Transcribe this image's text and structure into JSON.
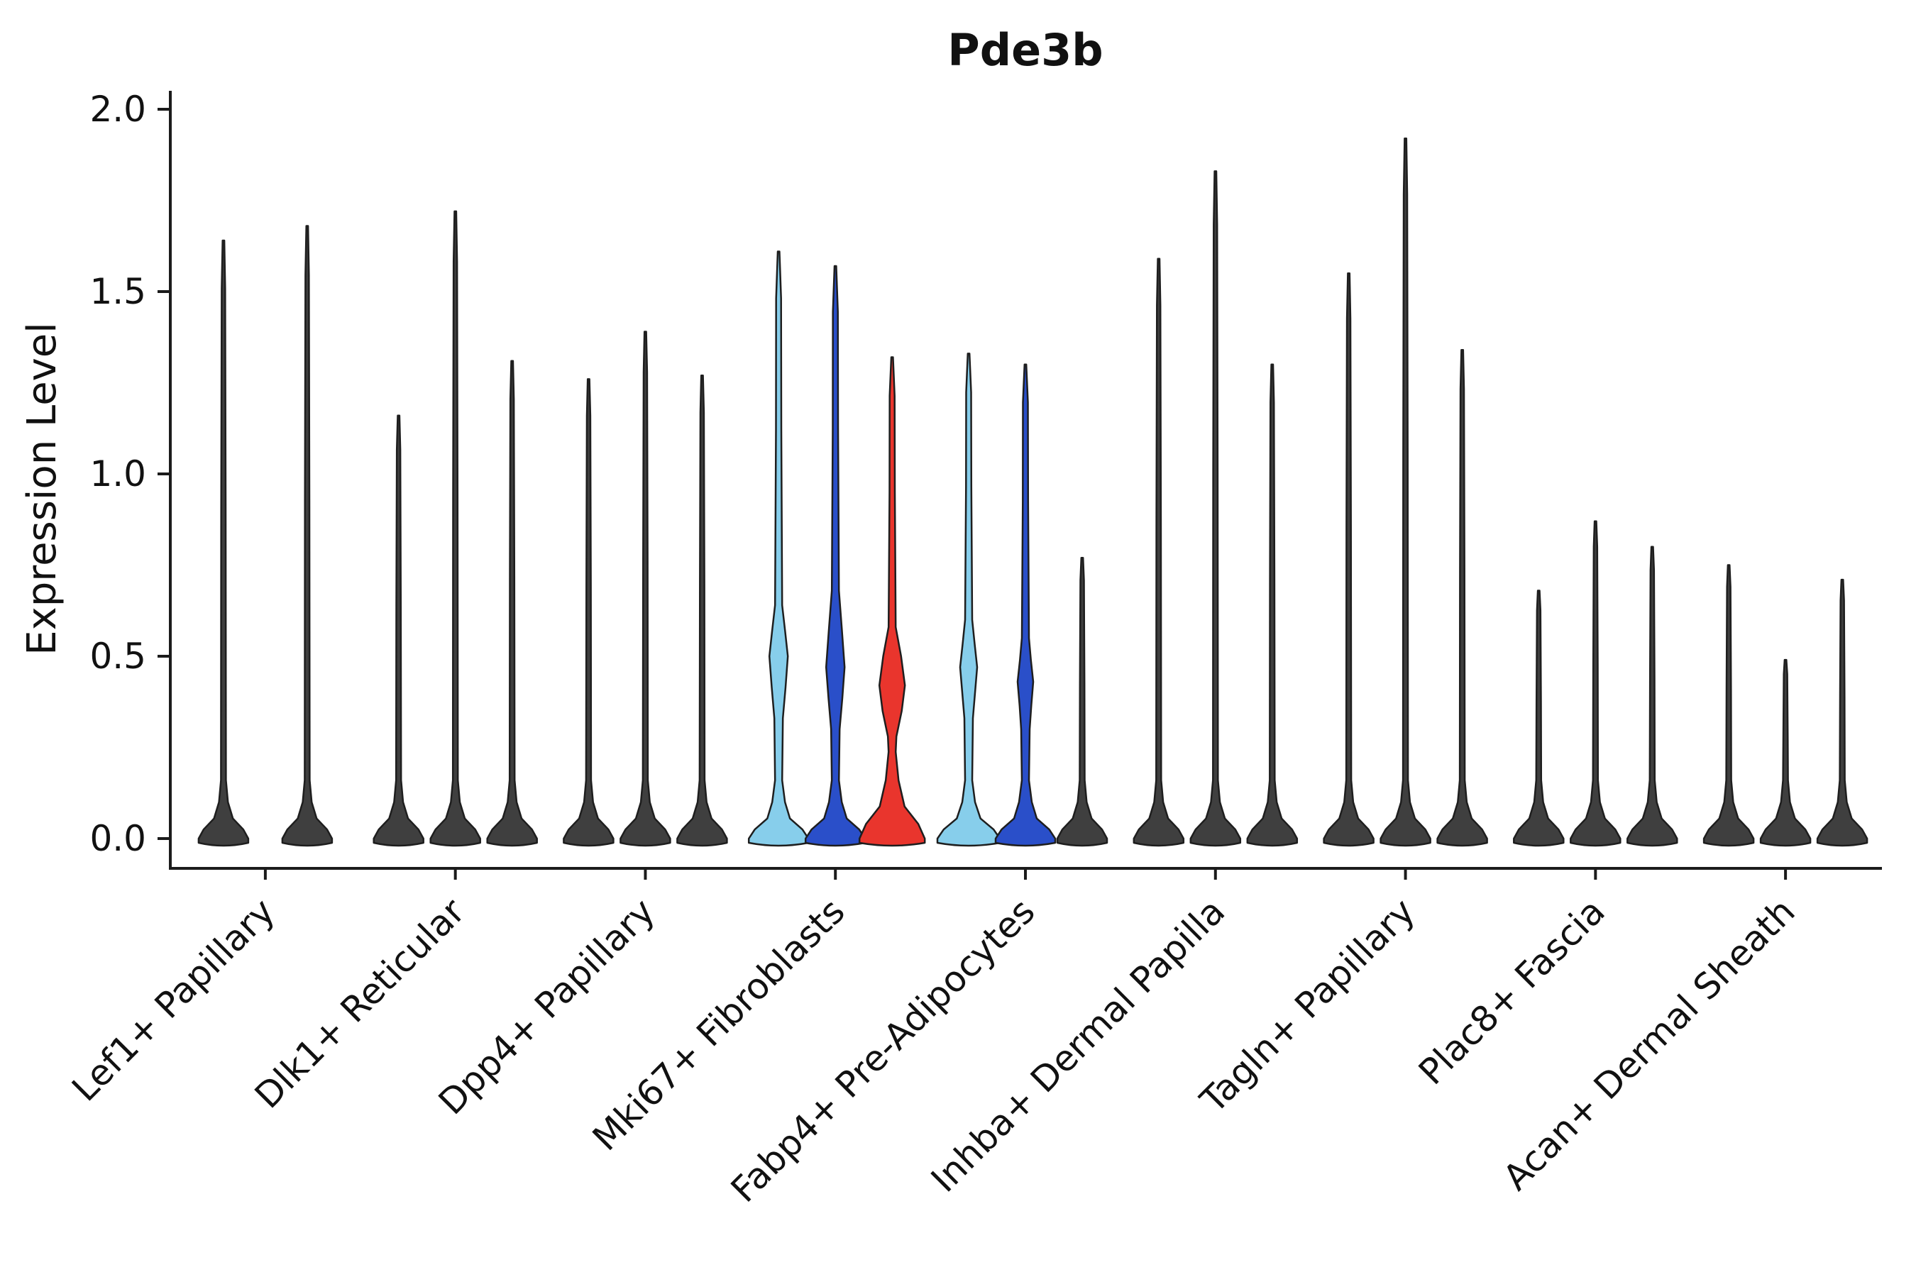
{
  "chart_data": {
    "type": "violin",
    "title": "Pde3b",
    "xlabel": "",
    "ylabel": "Expression Level",
    "ylim": [
      -0.08,
      2.05
    ],
    "grid": false,
    "legend": "none",
    "yticks": [
      "0.0",
      "0.5",
      "1.0",
      "1.5",
      "2.0"
    ],
    "ytick_values": [
      0,
      0.5,
      1,
      1.5,
      2
    ],
    "categories": [
      "Lef1+ Papillary",
      "Dlk1+ Reticular",
      "Dpp4+ Papillary",
      "Mki67+ Fibroblasts",
      "Fabp4+ Pre-Adipocytes",
      "Inhba+ Dermal Papilla",
      "Tagln+ Papillary",
      "Plac8+ Fascia",
      "Acan+ Dermal Sheath"
    ],
    "colors": {
      "default": "#3f3f3f",
      "light_blue": "#87CEEB",
      "dark_blue": "#2A4FC9",
      "red": "#E9352D",
      "outline": "#1e1e1e",
      "background": "#ffffff"
    },
    "groups": [
      {
        "label": "Lef1+ Papillary",
        "violins": [
          {
            "dx": -59,
            "color": "default",
            "max": 1.64
          },
          {
            "dx": 59,
            "color": "default",
            "max": 1.68
          }
        ]
      },
      {
        "label": "Dlk1+ Reticular",
        "violins": [
          {
            "dx": -80,
            "color": "default",
            "max": 1.16
          },
          {
            "dx": 0,
            "color": "default",
            "max": 1.72
          },
          {
            "dx": 80,
            "color": "default",
            "max": 1.31
          }
        ]
      },
      {
        "label": "Dpp4+ Papillary",
        "violins": [
          {
            "dx": -80,
            "color": "default",
            "max": 1.26
          },
          {
            "dx": 0,
            "color": "default",
            "max": 1.39
          },
          {
            "dx": 80,
            "color": "default",
            "max": 1.27
          }
        ]
      },
      {
        "label": "Mki67+ Fibroblasts",
        "violins": [
          {
            "dx": -80,
            "color": "light_blue",
            "max": 1.61,
            "base_hw": 42,
            "spike_hw": 5,
            "bulge": {
              "bottom": 0.33,
              "peak": 0.5,
              "top": 0.64,
              "hw": 13
            }
          },
          {
            "dx": 0,
            "color": "dark_blue",
            "max": 1.57,
            "base_hw": 42,
            "spike_hw": 5,
            "bulge": {
              "bottom": 0.3,
              "peak": 0.47,
              "top": 0.68,
              "hw": 13
            }
          },
          {
            "dx": 80,
            "color": "red",
            "max": 1.32,
            "base_hw": 46,
            "spike_hw": 5,
            "base_v": 0.16,
            "bulge": {
              "bottom": 0.28,
              "peak": 0.42,
              "top": 0.58,
              "hw": 18
            }
          }
        ]
      },
      {
        "label": "Fabp4+ Pre-Adipocytes",
        "violins": [
          {
            "dx": -80,
            "color": "light_blue",
            "max": 1.33,
            "base_hw": 44,
            "spike_hw": 5,
            "bulge": {
              "bottom": 0.33,
              "peak": 0.47,
              "top": 0.6,
              "hw": 12
            }
          },
          {
            "dx": 0,
            "color": "dark_blue",
            "max": 1.3,
            "base_hw": 42,
            "spike_hw": 5,
            "bulge": {
              "bottom": 0.3,
              "peak": 0.43,
              "top": 0.55,
              "hw": 11
            }
          },
          {
            "dx": 80,
            "color": "default",
            "max": 0.77
          }
        ]
      },
      {
        "label": "Inhba+ Dermal Papilla",
        "violins": [
          {
            "dx": -80,
            "color": "default",
            "max": 1.59
          },
          {
            "dx": 0,
            "color": "default",
            "max": 1.83
          },
          {
            "dx": 80,
            "color": "default",
            "max": 1.3
          }
        ]
      },
      {
        "label": "Tagln+ Papillary",
        "violins": [
          {
            "dx": -80,
            "color": "default",
            "max": 1.55
          },
          {
            "dx": 0,
            "color": "default",
            "max": 1.92
          },
          {
            "dx": 80,
            "color": "default",
            "max": 1.34
          }
        ]
      },
      {
        "label": "Plac8+ Fascia",
        "violins": [
          {
            "dx": -80,
            "color": "default",
            "max": 0.68
          },
          {
            "dx": 0,
            "color": "default",
            "max": 0.87
          },
          {
            "dx": 80,
            "color": "default",
            "max": 0.8
          }
        ]
      },
      {
        "label": "Acan+ Dermal Sheath",
        "violins": [
          {
            "dx": -80,
            "color": "default",
            "max": 0.75
          },
          {
            "dx": 0,
            "color": "default",
            "max": 0.49
          },
          {
            "dx": 80,
            "color": "default",
            "max": 0.71
          }
        ]
      }
    ]
  }
}
